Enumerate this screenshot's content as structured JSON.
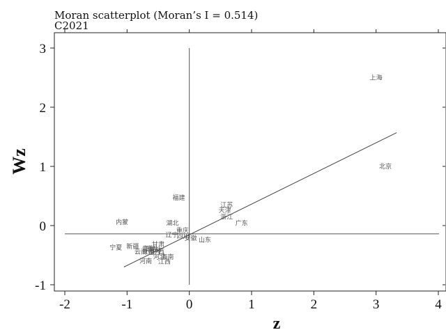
{
  "chart_data": {
    "type": "scatter",
    "title": "Moran scatterplot (Moran’s I = 0.514)",
    "subtitle": "C2021",
    "xlabel": "z",
    "ylabel": "Wz",
    "xlim": [
      -2,
      4
    ],
    "ylim": [
      -1,
      3
    ],
    "xticks": [
      "-2",
      "-1",
      "0",
      "1",
      "2",
      "3",
      "4"
    ],
    "yticks": [
      "-1",
      "0",
      "1",
      "2",
      "3"
    ],
    "mean_lines": {
      "x": 0,
      "y": -0.14
    },
    "fit_line": {
      "x1": -1.05,
      "y1": -0.7,
      "x2": 3.33,
      "y2": 1.57
    },
    "points": [
      {
        "label": "上海",
        "x": 3.0,
        "y": 2.5
      },
      {
        "label": "北京",
        "x": 3.15,
        "y": 1.0
      },
      {
        "label": "福建",
        "x": -0.17,
        "y": 0.47
      },
      {
        "label": "江苏",
        "x": 0.6,
        "y": 0.35
      },
      {
        "label": "天津",
        "x": 0.57,
        "y": 0.26
      },
      {
        "label": "浙江",
        "x": 0.6,
        "y": 0.15
      },
      {
        "label": "广东",
        "x": 0.84,
        "y": 0.04
      },
      {
        "label": "内蒙",
        "x": -1.08,
        "y": 0.06
      },
      {
        "label": "湖北",
        "x": -0.27,
        "y": 0.04
      },
      {
        "label": "重庆",
        "x": -0.11,
        "y": -0.08
      },
      {
        "label": "辽宁",
        "x": -0.28,
        "y": -0.16
      },
      {
        "label": "四川",
        "x": -0.1,
        "y": -0.18
      },
      {
        "label": "安徽",
        "x": 0.02,
        "y": -0.21
      },
      {
        "label": "山东",
        "x": 0.25,
        "y": -0.24
      },
      {
        "label": "甘肃",
        "x": -0.5,
        "y": -0.32
      },
      {
        "label": "宁夏",
        "x": -1.18,
        "y": -0.37
      },
      {
        "label": "新疆",
        "x": -0.91,
        "y": -0.35
      },
      {
        "label": "青海",
        "x": -0.66,
        "y": -0.39
      },
      {
        "label": "黑龙",
        "x": -0.6,
        "y": -0.4
      },
      {
        "label": "吉林",
        "x": -0.55,
        "y": -0.41
      },
      {
        "label": "云南",
        "x": -0.78,
        "y": -0.44
      },
      {
        "label": "贵州",
        "x": -0.66,
        "y": -0.44
      },
      {
        "label": "山西",
        "x": -0.56,
        "y": -0.45
      },
      {
        "label": "广西",
        "x": -0.5,
        "y": -0.44
      },
      {
        "label": "海南",
        "x": -0.35,
        "y": -0.53
      },
      {
        "label": "河北",
        "x": -0.48,
        "y": -0.53
      },
      {
        "label": "河南",
        "x": -0.7,
        "y": -0.6
      },
      {
        "label": "江西",
        "x": -0.4,
        "y": -0.61
      }
    ]
  }
}
